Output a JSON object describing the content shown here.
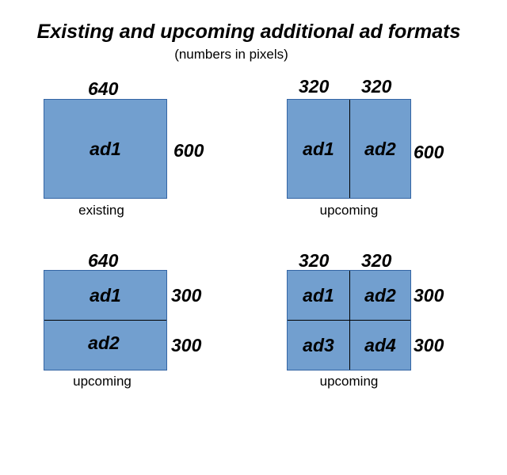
{
  "title": "Existing and upcoming additional ad formats",
  "subtitle": "(numbers in pixels)",
  "colors": {
    "ad_fill": "#729fcf",
    "ad_border": "#3465a4"
  },
  "diagrams": [
    {
      "widths": [
        "640"
      ],
      "heights": [
        "600"
      ],
      "cells": [
        "ad1"
      ],
      "caption": "existing"
    },
    {
      "widths": [
        "320",
        "320"
      ],
      "heights": [
        "600"
      ],
      "cells": [
        "ad1",
        "ad2"
      ],
      "caption": "upcoming"
    },
    {
      "widths": [
        "640"
      ],
      "heights": [
        "300",
        "300"
      ],
      "cells": [
        "ad1",
        "ad2"
      ],
      "caption": "upcoming"
    },
    {
      "widths": [
        "320",
        "320"
      ],
      "heights": [
        "300",
        "300"
      ],
      "cells": [
        "ad1",
        "ad2",
        "ad3",
        "ad4"
      ],
      "caption": "upcoming"
    }
  ]
}
